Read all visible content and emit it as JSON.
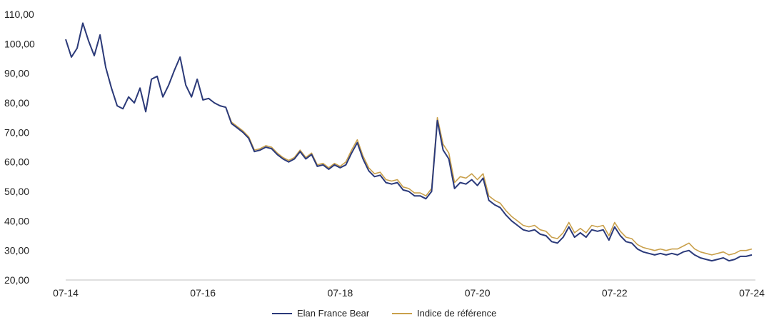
{
  "chart_data": {
    "type": "line",
    "title": "",
    "xlabel": "",
    "ylabel": "",
    "ylim": [
      20,
      110
    ],
    "yticks": [
      "110,00",
      "100,00",
      "90,00",
      "80,00",
      "70,00",
      "60,00",
      "50,00",
      "40,00",
      "30,00",
      "20,00"
    ],
    "xticks": [
      "07-14",
      "07-16",
      "07-18",
      "07-20",
      "07-22",
      "07-24"
    ],
    "grid": false,
    "legend_position": "bottom",
    "series": [
      {
        "name": "Elan France Bear",
        "color": "#2b3a7a",
        "points": [
          [
            "07-14",
            101.5
          ],
          [
            "08-14",
            95.5
          ],
          [
            "09-14",
            98.5
          ],
          [
            "10-14",
            107.0
          ],
          [
            "11-14",
            101.0
          ],
          [
            "12-14",
            96.0
          ],
          [
            "01-15",
            103.0
          ],
          [
            "02-15",
            92.0
          ],
          [
            "03-15",
            85.0
          ],
          [
            "04-15",
            79.0
          ],
          [
            "05-15",
            78.0
          ],
          [
            "06-15",
            82.0
          ],
          [
            "07-15",
            80.0
          ],
          [
            "08-15",
            85.0
          ],
          [
            "09-15",
            77.0
          ],
          [
            "10-15",
            88.0
          ],
          [
            "11-15",
            89.0
          ],
          [
            "12-15",
            82.0
          ],
          [
            "01-16",
            86.0
          ],
          [
            "02-16",
            91.0
          ],
          [
            "03-16",
            95.5
          ],
          [
            "04-16",
            86.0
          ],
          [
            "05-16",
            82.0
          ],
          [
            "06-16",
            88.0
          ],
          [
            "07-16",
            81.0
          ],
          [
            "08-16",
            81.5
          ],
          [
            "09-16",
            80.0
          ],
          [
            "10-16",
            79.0
          ],
          [
            "11-16",
            78.5
          ],
          [
            "12-16",
            73.0
          ],
          [
            "01-17",
            71.5
          ],
          [
            "02-17",
            70.0
          ],
          [
            "03-17",
            68.0
          ],
          [
            "04-17",
            63.5
          ],
          [
            "05-17",
            64.0
          ],
          [
            "06-17",
            65.0
          ],
          [
            "07-17",
            64.5
          ],
          [
            "08-17",
            62.5
          ],
          [
            "09-17",
            61.0
          ],
          [
            "10-17",
            60.0
          ],
          [
            "11-17",
            61.0
          ],
          [
            "12-17",
            63.5
          ],
          [
            "01-18",
            61.0
          ],
          [
            "02-18",
            62.5
          ],
          [
            "03-18",
            58.5
          ],
          [
            "04-18",
            59.0
          ],
          [
            "05-18",
            57.5
          ],
          [
            "06-18",
            59.0
          ],
          [
            "07-18",
            58.0
          ],
          [
            "08-18",
            59.0
          ],
          [
            "09-18",
            63.0
          ],
          [
            "10-18",
            66.5
          ],
          [
            "11-18",
            61.0
          ],
          [
            "12-18",
            57.0
          ],
          [
            "01-19",
            55.0
          ],
          [
            "02-19",
            55.5
          ],
          [
            "03-19",
            53.0
          ],
          [
            "04-19",
            52.5
          ],
          [
            "05-19",
            53.0
          ],
          [
            "06-19",
            50.5
          ],
          [
            "07-19",
            50.0
          ],
          [
            "08-19",
            48.5
          ],
          [
            "09-19",
            48.5
          ],
          [
            "10-19",
            47.5
          ],
          [
            "11-19",
            50.0
          ],
          [
            "12-19",
            74.0
          ],
          [
            "01-20",
            64.0
          ],
          [
            "02-20",
            61.0
          ],
          [
            "03-20",
            51.0
          ],
          [
            "04-20",
            53.0
          ],
          [
            "05-20",
            52.5
          ],
          [
            "06-20",
            54.0
          ],
          [
            "07-20",
            52.0
          ],
          [
            "08-20",
            54.5
          ],
          [
            "09-20",
            47.0
          ],
          [
            "10-20",
            45.5
          ],
          [
            "11-20",
            44.5
          ],
          [
            "12-20",
            42.0
          ],
          [
            "01-21",
            40.0
          ],
          [
            "02-21",
            38.5
          ],
          [
            "03-21",
            37.0
          ],
          [
            "04-21",
            36.5
          ],
          [
            "05-21",
            37.0
          ],
          [
            "06-21",
            35.5
          ],
          [
            "07-21",
            35.0
          ],
          [
            "08-21",
            33.0
          ],
          [
            "09-21",
            32.5
          ],
          [
            "10-21",
            34.5
          ],
          [
            "11-21",
            38.0
          ],
          [
            "12-21",
            34.5
          ],
          [
            "01-22",
            36.0
          ],
          [
            "02-22",
            34.5
          ],
          [
            "03-22",
            37.0
          ],
          [
            "04-22",
            36.5
          ],
          [
            "05-22",
            37.0
          ],
          [
            "06-22",
            33.5
          ],
          [
            "07-22",
            38.0
          ],
          [
            "08-22",
            35.0
          ],
          [
            "09-22",
            33.0
          ],
          [
            "10-22",
            32.5
          ],
          [
            "11-22",
            30.5
          ],
          [
            "12-22",
            29.5
          ],
          [
            "01-23",
            29.0
          ],
          [
            "02-23",
            28.5
          ],
          [
            "03-23",
            29.0
          ],
          [
            "04-23",
            28.5
          ],
          [
            "05-23",
            29.0
          ],
          [
            "06-23",
            28.5
          ],
          [
            "07-23",
            29.5
          ],
          [
            "08-23",
            30.0
          ],
          [
            "09-23",
            28.5
          ],
          [
            "10-23",
            27.5
          ],
          [
            "11-23",
            27.0
          ],
          [
            "12-23",
            26.5
          ],
          [
            "01-24",
            27.0
          ],
          [
            "02-24",
            27.5
          ],
          [
            "03-24",
            26.5
          ],
          [
            "04-24",
            27.0
          ],
          [
            "05-24",
            28.0
          ],
          [
            "06-24",
            28.0
          ],
          [
            "07-24",
            28.5
          ]
        ]
      },
      {
        "name": "Indice de référence",
        "color": "#c9a04b",
        "points": [
          [
            "07-14",
            101.5
          ],
          [
            "08-14",
            95.5
          ],
          [
            "09-14",
            98.5
          ],
          [
            "10-14",
            107.0
          ],
          [
            "11-14",
            101.0
          ],
          [
            "12-14",
            96.0
          ],
          [
            "01-15",
            103.0
          ],
          [
            "02-15",
            92.0
          ],
          [
            "03-15",
            85.0
          ],
          [
            "04-15",
            79.0
          ],
          [
            "05-15",
            78.0
          ],
          [
            "06-15",
            82.0
          ],
          [
            "07-15",
            80.0
          ],
          [
            "08-15",
            85.0
          ],
          [
            "09-15",
            77.0
          ],
          [
            "10-15",
            88.0
          ],
          [
            "11-15",
            89.0
          ],
          [
            "12-15",
            82.0
          ],
          [
            "01-16",
            86.0
          ],
          [
            "02-16",
            91.0
          ],
          [
            "03-16",
            95.5
          ],
          [
            "04-16",
            86.0
          ],
          [
            "05-16",
            82.0
          ],
          [
            "06-16",
            88.0
          ],
          [
            "07-16",
            81.0
          ],
          [
            "08-16",
            81.5
          ],
          [
            "09-16",
            80.0
          ],
          [
            "10-16",
            79.0
          ],
          [
            "11-16",
            78.5
          ],
          [
            "12-16",
            73.5
          ],
          [
            "01-17",
            72.0
          ],
          [
            "02-17",
            70.5
          ],
          [
            "03-17",
            68.5
          ],
          [
            "04-17",
            64.0
          ],
          [
            "05-17",
            64.5
          ],
          [
            "06-17",
            65.5
          ],
          [
            "07-17",
            65.0
          ],
          [
            "08-17",
            63.0
          ],
          [
            "09-17",
            61.5
          ],
          [
            "10-17",
            60.5
          ],
          [
            "11-17",
            61.5
          ],
          [
            "12-17",
            64.0
          ],
          [
            "01-18",
            61.5
          ],
          [
            "02-18",
            63.0
          ],
          [
            "03-18",
            59.0
          ],
          [
            "04-18",
            59.5
          ],
          [
            "05-18",
            58.0
          ],
          [
            "06-18",
            59.5
          ],
          [
            "07-18",
            58.5
          ],
          [
            "08-18",
            60.0
          ],
          [
            "09-18",
            64.0
          ],
          [
            "10-18",
            67.5
          ],
          [
            "11-18",
            62.0
          ],
          [
            "12-18",
            58.0
          ],
          [
            "01-19",
            56.0
          ],
          [
            "02-19",
            56.5
          ],
          [
            "03-19",
            54.0
          ],
          [
            "04-19",
            53.5
          ],
          [
            "05-19",
            54.0
          ],
          [
            "06-19",
            51.5
          ],
          [
            "07-19",
            51.0
          ],
          [
            "08-19",
            49.5
          ],
          [
            "09-19",
            49.5
          ],
          [
            "10-19",
            48.5
          ],
          [
            "11-19",
            51.0
          ],
          [
            "12-19",
            75.0
          ],
          [
            "01-20",
            66.0
          ],
          [
            "02-20",
            63.0
          ],
          [
            "03-20",
            53.0
          ],
          [
            "04-20",
            55.0
          ],
          [
            "05-20",
            54.5
          ],
          [
            "06-20",
            56.0
          ],
          [
            "07-20",
            54.0
          ],
          [
            "08-20",
            56.0
          ],
          [
            "09-20",
            48.5
          ],
          [
            "10-20",
            47.0
          ],
          [
            "11-20",
            46.0
          ],
          [
            "12-20",
            43.5
          ],
          [
            "01-21",
            41.5
          ],
          [
            "02-21",
            40.0
          ],
          [
            "03-21",
            38.5
          ],
          [
            "04-21",
            38.0
          ],
          [
            "05-21",
            38.5
          ],
          [
            "06-21",
            37.0
          ],
          [
            "07-21",
            36.5
          ],
          [
            "08-21",
            34.5
          ],
          [
            "09-21",
            34.0
          ],
          [
            "10-21",
            36.0
          ],
          [
            "11-21",
            39.5
          ],
          [
            "12-21",
            36.0
          ],
          [
            "01-22",
            37.5
          ],
          [
            "02-22",
            36.0
          ],
          [
            "03-22",
            38.5
          ],
          [
            "04-22",
            38.0
          ],
          [
            "05-22",
            38.5
          ],
          [
            "06-22",
            35.0
          ],
          [
            "07-22",
            39.5
          ],
          [
            "08-22",
            36.5
          ],
          [
            "09-22",
            34.5
          ],
          [
            "10-22",
            34.0
          ],
          [
            "11-22",
            32.0
          ],
          [
            "12-22",
            31.0
          ],
          [
            "01-23",
            30.5
          ],
          [
            "02-23",
            30.0
          ],
          [
            "03-23",
            30.5
          ],
          [
            "04-23",
            30.0
          ],
          [
            "05-23",
            30.5
          ],
          [
            "06-23",
            30.5
          ],
          [
            "07-23",
            31.5
          ],
          [
            "08-23",
            32.5
          ],
          [
            "09-23",
            30.5
          ],
          [
            "10-23",
            29.5
          ],
          [
            "11-23",
            29.0
          ],
          [
            "12-23",
            28.5
          ],
          [
            "01-24",
            29.0
          ],
          [
            "02-24",
            29.5
          ],
          [
            "03-24",
            28.5
          ],
          [
            "04-24",
            29.0
          ],
          [
            "05-24",
            30.0
          ],
          [
            "06-24",
            30.0
          ],
          [
            "07-24",
            30.5
          ]
        ]
      }
    ]
  }
}
